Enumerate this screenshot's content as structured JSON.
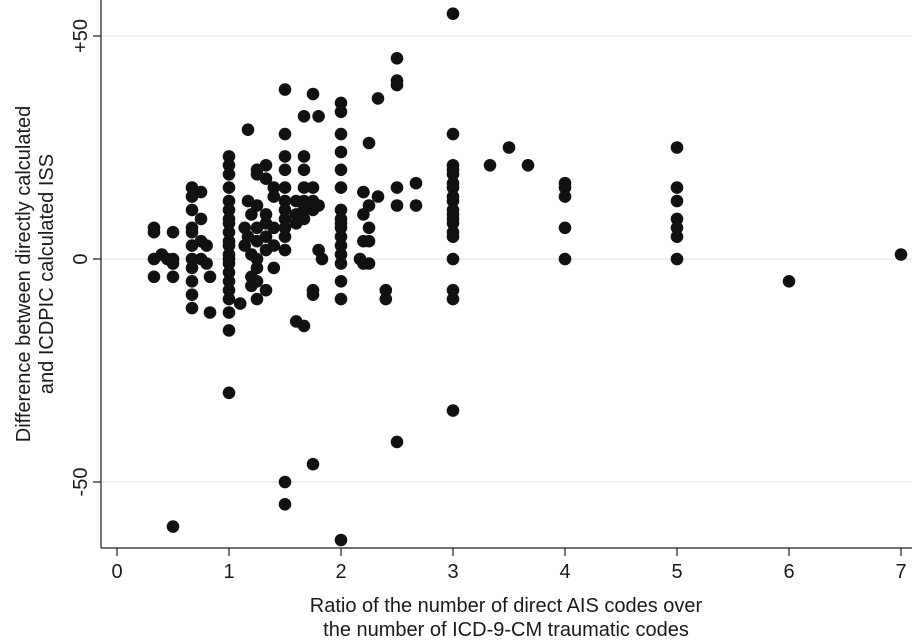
{
  "chart_data": {
    "type": "scatter",
    "xlabel": [
      "Ratio of the number of direct AIS codes over",
      "the number of ICD-9-CM traumatic codes"
    ],
    "ylabel": [
      "Difference between directly calculated",
      "and ICDPIC calculated ISS"
    ],
    "xlim": [
      -0.1,
      7.1
    ],
    "ylim": [
      -65,
      58
    ],
    "xticks": [
      0,
      1,
      2,
      3,
      4,
      5,
      6,
      7
    ],
    "xtick_labels": [
      "0",
      "1",
      "2",
      "3",
      "4",
      "5",
      "6",
      "7"
    ],
    "yticks": [
      -50,
      0,
      50
    ],
    "ytick_labels": [
      "-50",
      "0",
      "+50"
    ],
    "grid": "horizontal",
    "marker_color": "#111111",
    "points": [
      [
        0.33,
        7
      ],
      [
        0.33,
        6
      ],
      [
        0.33,
        0
      ],
      [
        0.33,
        -4
      ],
      [
        0.4,
        1
      ],
      [
        0.45,
        0
      ],
      [
        0.5,
        6
      ],
      [
        0.5,
        0
      ],
      [
        0.5,
        -1
      ],
      [
        0.5,
        -4
      ],
      [
        0.5,
        -60
      ],
      [
        0.67,
        16
      ],
      [
        0.67,
        14
      ],
      [
        0.67,
        11
      ],
      [
        0.67,
        7
      ],
      [
        0.67,
        6
      ],
      [
        0.67,
        3
      ],
      [
        0.67,
        0
      ],
      [
        0.67,
        -2
      ],
      [
        0.67,
        -5
      ],
      [
        0.67,
        -8
      ],
      [
        0.67,
        -11
      ],
      [
        0.75,
        15
      ],
      [
        0.75,
        9
      ],
      [
        0.75,
        4
      ],
      [
        0.75,
        0
      ],
      [
        0.8,
        3
      ],
      [
        0.8,
        -1
      ],
      [
        0.83,
        -4
      ],
      [
        0.83,
        -12
      ],
      [
        1,
        23
      ],
      [
        1,
        21
      ],
      [
        1,
        19
      ],
      [
        1,
        16
      ],
      [
        1,
        13
      ],
      [
        1,
        11
      ],
      [
        1,
        9
      ],
      [
        1,
        8
      ],
      [
        1,
        6
      ],
      [
        1,
        4
      ],
      [
        1,
        3
      ],
      [
        1,
        1
      ],
      [
        1,
        0
      ],
      [
        1,
        -1
      ],
      [
        1,
        -3
      ],
      [
        1,
        -5
      ],
      [
        1,
        -7
      ],
      [
        1,
        -9
      ],
      [
        1,
        -12
      ],
      [
        1,
        -16
      ],
      [
        1,
        -30
      ],
      [
        1.1,
        -10
      ],
      [
        1.14,
        7
      ],
      [
        1.14,
        3
      ],
      [
        1.17,
        29
      ],
      [
        1.17,
        13
      ],
      [
        1.17,
        5
      ],
      [
        1.2,
        -4
      ],
      [
        1.2,
        -6
      ],
      [
        1.2,
        1
      ],
      [
        1.2,
        10
      ],
      [
        1.25,
        20
      ],
      [
        1.25,
        19
      ],
      [
        1.25,
        12
      ],
      [
        1.25,
        7
      ],
      [
        1.25,
        4
      ],
      [
        1.25,
        0
      ],
      [
        1.25,
        -2
      ],
      [
        1.25,
        -5
      ],
      [
        1.25,
        -9
      ],
      [
        1.33,
        21
      ],
      [
        1.33,
        18
      ],
      [
        1.33,
        10
      ],
      [
        1.33,
        8
      ],
      [
        1.33,
        5
      ],
      [
        1.33,
        2
      ],
      [
        1.33,
        -7
      ],
      [
        1.4,
        16
      ],
      [
        1.4,
        14
      ],
      [
        1.4,
        7
      ],
      [
        1.4,
        3
      ],
      [
        1.4,
        -2
      ],
      [
        1.5,
        38
      ],
      [
        1.5,
        28
      ],
      [
        1.5,
        23
      ],
      [
        1.5,
        20
      ],
      [
        1.5,
        16
      ],
      [
        1.5,
        13
      ],
      [
        1.5,
        11
      ],
      [
        1.5,
        9
      ],
      [
        1.5,
        7
      ],
      [
        1.5,
        5
      ],
      [
        1.5,
        2
      ],
      [
        1.5,
        -50
      ],
      [
        1.5,
        -55
      ],
      [
        1.6,
        13
      ],
      [
        1.6,
        10
      ],
      [
        1.6,
        8
      ],
      [
        1.6,
        -14
      ],
      [
        1.67,
        32
      ],
      [
        1.67,
        23
      ],
      [
        1.67,
        20
      ],
      [
        1.67,
        16
      ],
      [
        1.67,
        13
      ],
      [
        1.67,
        11
      ],
      [
        1.67,
        9
      ],
      [
        1.67,
        -15
      ],
      [
        1.75,
        37
      ],
      [
        1.75,
        16
      ],
      [
        1.75,
        13
      ],
      [
        1.75,
        11
      ],
      [
        1.75,
        -7
      ],
      [
        1.75,
        -8
      ],
      [
        1.75,
        -46
      ],
      [
        1.8,
        32
      ],
      [
        1.8,
        12
      ],
      [
        1.8,
        2
      ],
      [
        1.83,
        0
      ],
      [
        2,
        35
      ],
      [
        2,
        33
      ],
      [
        2,
        28
      ],
      [
        2,
        24
      ],
      [
        2,
        20
      ],
      [
        2,
        16
      ],
      [
        2,
        11
      ],
      [
        2,
        9
      ],
      [
        2,
        8
      ],
      [
        2,
        7
      ],
      [
        2,
        5
      ],
      [
        2,
        3
      ],
      [
        2,
        1
      ],
      [
        2,
        -1
      ],
      [
        2,
        -5
      ],
      [
        2,
        -9
      ],
      [
        2,
        -63
      ],
      [
        2.17,
        0
      ],
      [
        2.2,
        -1
      ],
      [
        2.2,
        4
      ],
      [
        2.2,
        10
      ],
      [
        2.2,
        15
      ],
      [
        2.25,
        26
      ],
      [
        2.25,
        12
      ],
      [
        2.25,
        7
      ],
      [
        2.25,
        4
      ],
      [
        2.25,
        -1
      ],
      [
        2.33,
        36
      ],
      [
        2.33,
        14
      ],
      [
        2.4,
        -7
      ],
      [
        2.4,
        -9
      ],
      [
        2.5,
        45
      ],
      [
        2.5,
        40
      ],
      [
        2.5,
        39
      ],
      [
        2.5,
        16
      ],
      [
        2.5,
        12
      ],
      [
        2.5,
        -41
      ],
      [
        2.67,
        17
      ],
      [
        2.67,
        12
      ],
      [
        3,
        55
      ],
      [
        3,
        28
      ],
      [
        3,
        21
      ],
      [
        3,
        20
      ],
      [
        3,
        19
      ],
      [
        3,
        17
      ],
      [
        3,
        16
      ],
      [
        3,
        14
      ],
      [
        3,
        13
      ],
      [
        3,
        11
      ],
      [
        3,
        10
      ],
      [
        3,
        9
      ],
      [
        3,
        8
      ],
      [
        3,
        6
      ],
      [
        3,
        5
      ],
      [
        3,
        0
      ],
      [
        3,
        -7
      ],
      [
        3,
        -9
      ],
      [
        3,
        -34
      ],
      [
        3.33,
        21
      ],
      [
        3.5,
        25
      ],
      [
        3.67,
        21
      ],
      [
        4,
        17
      ],
      [
        4,
        16
      ],
      [
        4,
        14
      ],
      [
        4,
        7
      ],
      [
        4,
        0
      ],
      [
        5,
        25
      ],
      [
        5,
        16
      ],
      [
        5,
        13
      ],
      [
        5,
        9
      ],
      [
        5,
        7
      ],
      [
        5,
        5
      ],
      [
        5,
        0
      ],
      [
        6,
        -5
      ],
      [
        7,
        1
      ]
    ]
  }
}
